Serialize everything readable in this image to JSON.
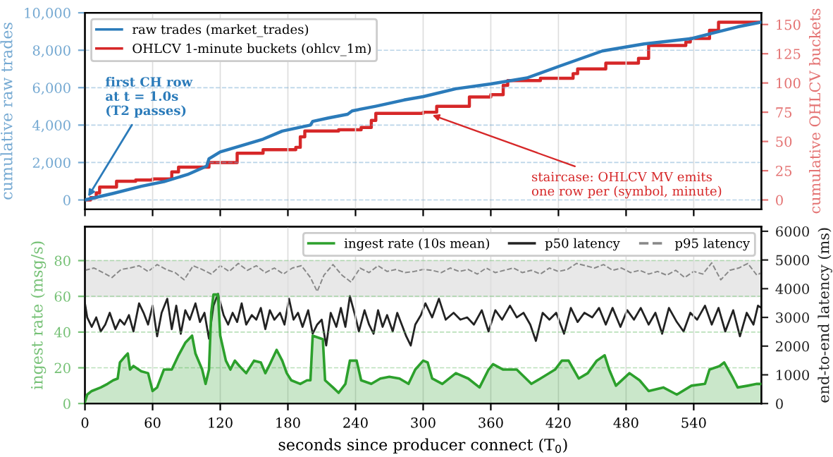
{
  "chart_data": [
    {
      "type": "line",
      "ylabel": "cumulative raw trades",
      "y2label": "cumulative OHLCV buckets",
      "xlim": [
        0,
        600
      ],
      "xticks": [
        0,
        60,
        120,
        180,
        240,
        300,
        360,
        420,
        480,
        540
      ],
      "ylim": [
        -500,
        10000
      ],
      "yticks": [
        0,
        {
          "value": 2000,
          "label": "2,000"
        },
        {
          "value": 4000,
          "label": "4,000"
        },
        {
          "value": 6000,
          "label": "6,000"
        },
        {
          "value": 8000,
          "label": "8,000"
        },
        {
          "value": 10000,
          "label": "10,000"
        }
      ],
      "y2lim": [
        -8,
        160
      ],
      "y2ticks": [
        0,
        25,
        50,
        75,
        100,
        125,
        150
      ],
      "tick_labels": "y",
      "grid": true,
      "legend": "top left",
      "annotations": [
        {
          "text": "first CH row\nat t = 1.0s\n(T2 passes)",
          "x": 1,
          "y": 0
        },
        {
          "text": "staircase: OHLCV MV emits\none row per (symbol, minute)",
          "x": 305,
          "y": 4600
        }
      ],
      "series": [
        {
          "name": "raw trades (market_trades)",
          "color": "#2b7bba",
          "x": [
            0,
            25,
            50,
            70,
            91,
            108,
            110,
            120,
            137,
            158,
            175,
            200,
            202,
            216,
            233,
            237,
            258,
            283,
            300,
            329,
            360,
            392,
            421,
            459,
            496,
            538,
            554,
            579,
            600
          ],
          "values": [
            0,
            350,
            730,
            980,
            1360,
            1810,
            2200,
            2570,
            2870,
            3250,
            3680,
            4000,
            4200,
            4380,
            4580,
            4760,
            5010,
            5340,
            5520,
            5940,
            6200,
            6520,
            7150,
            7960,
            8340,
            8620,
            8870,
            9250,
            9500
          ]
        },
        {
          "name": "OHLCV 1-minute buckets (ohlcv_1m)",
          "color": "#d62728",
          "type": "step",
          "axis": "y2",
          "x": [
            0,
            5,
            10,
            13,
            28,
            45,
            60,
            77,
            83,
            110,
            135,
            158,
            187,
            191,
            195,
            225,
            245,
            254,
            258,
            300,
            312,
            341,
            360,
            371,
            375,
            404,
            433,
            437,
            462,
            491,
            500,
            533,
            537,
            554,
            562,
            600
          ],
          "values": [
            0,
            2,
            6,
            11,
            16,
            17,
            18,
            24,
            28,
            32,
            40,
            43,
            45,
            54,
            59,
            60,
            62,
            68,
            74,
            75,
            80,
            88,
            90,
            98,
            102,
            104,
            108,
            112,
            117,
            121,
            132,
            135,
            138,
            145,
            152,
            152
          ]
        }
      ]
    },
    {
      "type": "line",
      "xlabel": "seconds since producer connect (T$_{0}$)",
      "ylabel": "ingest rate (msg/s)",
      "y2label": "end-to-end latency (ms)",
      "xlim": [
        0,
        600
      ],
      "xticks": [
        0,
        60,
        120,
        180,
        240,
        300,
        360,
        420,
        480,
        540
      ],
      "ylim": [
        0,
        99
      ],
      "yticks": [
        0,
        20,
        40,
        60,
        80
      ],
      "y2lim": [
        0,
        6160
      ],
      "y2ticks": [
        0,
        1000,
        2000,
        3000,
        4000,
        5000,
        6000
      ],
      "grid": true,
      "legend": "top right",
      "bands": [
        {
          "axis": "y2",
          "from": 3700,
          "to": 5000,
          "color": "#e8e8e8"
        }
      ],
      "series": [
        {
          "name": "ingest rate (10s mean)",
          "color": "#2ca02c",
          "type": "area",
          "x": [
            0,
            2,
            6,
            14,
            20,
            25,
            29,
            31,
            35,
            38,
            40,
            43,
            50,
            56,
            60,
            64,
            70,
            77,
            83,
            89,
            95,
            98,
            104,
            107,
            110,
            112,
            114,
            118,
            120,
            125,
            129,
            133,
            137,
            143,
            150,
            156,
            160,
            164,
            170,
            175,
            179,
            183,
            191,
            197,
            200,
            202,
            211,
            213,
            220,
            225,
            231,
            235,
            241,
            245,
            254,
            262,
            270,
            279,
            287,
            293,
            300,
            304,
            308,
            317,
            329,
            340,
            350,
            358,
            362,
            371,
            383,
            396,
            404,
            417,
            423,
            429,
            438,
            446,
            454,
            461,
            465,
            471,
            483,
            492,
            500,
            513,
            525,
            538,
            550,
            554,
            563,
            567,
            575,
            579,
            588,
            596,
            600
          ],
          "values": [
            1,
            5,
            7,
            9,
            11,
            13,
            14,
            23,
            26,
            28,
            19,
            21,
            18,
            17,
            7,
            9,
            19,
            19,
            27,
            34,
            38,
            28,
            19,
            11,
            19,
            51,
            61,
            61,
            38,
            24,
            19,
            24,
            21,
            17,
            24,
            23,
            17,
            22,
            30,
            24,
            17,
            13,
            11,
            13,
            13,
            38,
            36,
            13,
            9,
            6,
            11,
            24,
            24,
            13,
            11,
            14,
            15,
            14,
            11,
            19,
            24,
            23,
            14,
            11,
            17,
            14,
            9,
            19,
            22,
            19,
            19,
            11,
            14,
            19,
            24,
            24,
            14,
            17,
            24,
            27,
            19,
            10,
            17,
            13,
            7,
            9,
            5,
            10,
            11,
            19,
            21,
            23,
            14,
            9,
            10,
            11,
            11
          ]
        },
        {
          "name": "p50 latency",
          "color": "#222222",
          "axis": "y2",
          "x": [
            0,
            2,
            6,
            10,
            14,
            18,
            22,
            27,
            31,
            35,
            39,
            43,
            48,
            52,
            56,
            60,
            64,
            68,
            73,
            77,
            81,
            85,
            89,
            93,
            98,
            102,
            106,
            110,
            114,
            118,
            123,
            127,
            131,
            135,
            139,
            143,
            148,
            152,
            156,
            160,
            164,
            168,
            173,
            177,
            181,
            185,
            189,
            193,
            198,
            202,
            206,
            210,
            214,
            218,
            223,
            227,
            231,
            235,
            239,
            243,
            248,
            252,
            256,
            260,
            264,
            268,
            273,
            277,
            281,
            285,
            289,
            293,
            298,
            302,
            308,
            314,
            320,
            327,
            333,
            339,
            345,
            352,
            358,
            364,
            370,
            377,
            383,
            389,
            395,
            400,
            406,
            412,
            418,
            425,
            431,
            437,
            443,
            450,
            456,
            462,
            468,
            475,
            481,
            487,
            493,
            500,
            506,
            512,
            518,
            525,
            531,
            537,
            543,
            550,
            556,
            562,
            568,
            575,
            581,
            587,
            593,
            597,
            600
          ],
          "values": [
            3490,
            3000,
            2670,
            3000,
            2510,
            2750,
            3160,
            2590,
            2920,
            2750,
            3080,
            2510,
            3490,
            3160,
            2750,
            3410,
            2340,
            3160,
            3650,
            2590,
            3410,
            2430,
            3250,
            2920,
            3490,
            2840,
            3160,
            2260,
            3410,
            3820,
            3080,
            2750,
            3160,
            2840,
            3490,
            2750,
            3080,
            2920,
            3330,
            2590,
            3250,
            2920,
            3160,
            2750,
            3650,
            2920,
            3160,
            2670,
            3250,
            2430,
            2750,
            2920,
            2020,
            3160,
            2670,
            3330,
            2670,
            3740,
            3160,
            2510,
            3250,
            2750,
            2430,
            3250,
            2670,
            3080,
            2510,
            3160,
            2750,
            2340,
            2020,
            2750,
            3080,
            3490,
            3000,
            3650,
            2920,
            3160,
            2920,
            3000,
            2750,
            3250,
            2510,
            3250,
            2920,
            3410,
            3000,
            3160,
            2750,
            2180,
            3160,
            2920,
            3160,
            2430,
            3330,
            2840,
            3160,
            3000,
            3330,
            2750,
            3330,
            2670,
            3250,
            2920,
            3330,
            2750,
            3160,
            2430,
            3330,
            2840,
            2510,
            3160,
            2920,
            3410,
            2750,
            3330,
            2510,
            3250,
            2340,
            3160,
            2750,
            3410,
            3330
          ]
        },
        {
          "name": "p95 latency",
          "color": "#888888",
          "axis": "y2",
          "line_style": "dashed",
          "x": [
            0,
            8,
            16,
            24,
            32,
            40,
            48,
            56,
            64,
            72,
            80,
            88,
            96,
            104,
            112,
            120,
            128,
            136,
            144,
            152,
            160,
            168,
            176,
            184,
            192,
            200,
            206,
            212,
            220,
            228,
            236,
            244,
            252,
            260,
            268,
            276,
            284,
            292,
            300,
            308,
            316,
            324,
            332,
            340,
            348,
            356,
            364,
            372,
            380,
            388,
            396,
            404,
            412,
            420,
            428,
            436,
            444,
            452,
            460,
            468,
            476,
            484,
            492,
            500,
            508,
            516,
            524,
            532,
            540,
            548,
            556,
            564,
            572,
            580,
            588,
            596,
            600
          ],
          "values": [
            4640,
            4720,
            4560,
            4390,
            4670,
            4720,
            4800,
            4600,
            4840,
            4670,
            4560,
            4310,
            4800,
            4670,
            4510,
            4800,
            4600,
            4880,
            4640,
            4800,
            4560,
            4720,
            4510,
            4720,
            4800,
            4390,
            3900,
            4470,
            4840,
            4470,
            4230,
            4720,
            4560,
            4800,
            4600,
            4670,
            4560,
            4600,
            4670,
            4640,
            4560,
            4720,
            4600,
            4670,
            4510,
            4720,
            4560,
            4640,
            4720,
            4560,
            4640,
            4510,
            4720,
            4600,
            4670,
            4880,
            4800,
            4720,
            4840,
            4640,
            4720,
            4560,
            4640,
            4510,
            4600,
            4470,
            4640,
            4390,
            4600,
            4510,
            4900,
            4310,
            4640,
            4720,
            4880,
            4470,
            4560
          ]
        }
      ]
    }
  ]
}
